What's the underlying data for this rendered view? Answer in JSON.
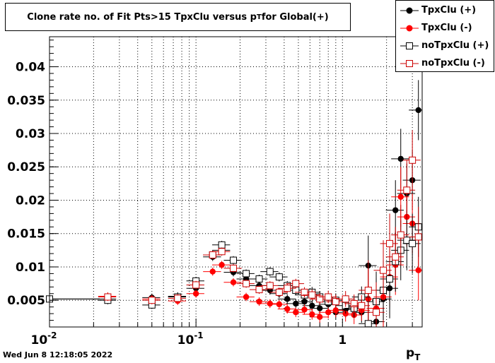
{
  "title": "Clone rate no. of Fit Pts>15 TpxClu versus p",
  "title_sub": "T",
  "title_tail": " for Global(+)",
  "footer": "Wed Jun  8 12:18:05 2022",
  "chart_data": {
    "type": "scatter",
    "xscale": "log",
    "xlim": [
      0.01,
      3.5
    ],
    "ylim": [
      0.001,
      0.0445
    ],
    "xlabel": "p",
    "xlabel_sub": "T",
    "grid": true,
    "legend_position": "top-right",
    "yticks": [
      {
        "v": 0.005,
        "label": "0.005"
      },
      {
        "v": 0.01,
        "label": "0.01"
      },
      {
        "v": 0.015,
        "label": "0.015"
      },
      {
        "v": 0.02,
        "label": "0.02"
      },
      {
        "v": 0.025,
        "label": "0.025"
      },
      {
        "v": 0.03,
        "label": "0.03"
      },
      {
        "v": 0.035,
        "label": "0.035"
      },
      {
        "v": 0.04,
        "label": "0.04"
      }
    ],
    "xticks": [
      {
        "v": 0.01,
        "base": "10",
        "exp": "-2"
      },
      {
        "v": 0.1,
        "base": "10",
        "exp": "-1"
      },
      {
        "v": 1,
        "base": "1",
        "exp": ""
      }
    ],
    "series": [
      {
        "name": "TpxClu (+)",
        "color": "#000000",
        "marker": "filled-circle",
        "x": [
          0.01,
          0.025,
          0.05,
          0.075,
          0.1,
          0.13,
          0.15,
          0.18,
          0.22,
          0.27,
          0.32,
          0.37,
          0.42,
          0.48,
          0.55,
          0.62,
          0.7,
          0.8,
          0.9,
          1.05,
          1.2,
          1.35,
          1.5,
          1.7,
          1.9,
          2.1,
          2.3,
          2.5,
          2.75,
          3.0,
          3.3
        ],
        "y": [
          0.0052,
          0.0052,
          0.0054,
          0.0056,
          0.0068,
          0.0115,
          0.0125,
          0.0092,
          0.0082,
          0.0072,
          0.0065,
          0.006,
          0.0052,
          0.0045,
          0.0048,
          0.0042,
          0.0038,
          0.0044,
          0.0032,
          0.0036,
          0.004,
          0.0032,
          0.0102,
          0.0018,
          0.0052,
          0.0068,
          0.0185,
          0.0262,
          0.021,
          0.023,
          0.0335
        ]
      },
      {
        "name": "TpxClu (-)",
        "color": "#ff0000",
        "marker": "filled-circle",
        "x": [
          0.025,
          0.05,
          0.075,
          0.1,
          0.13,
          0.15,
          0.18,
          0.22,
          0.27,
          0.32,
          0.37,
          0.42,
          0.48,
          0.55,
          0.62,
          0.7,
          0.8,
          0.9,
          1.05,
          1.2,
          1.35,
          1.5,
          1.7,
          1.9,
          2.1,
          2.3,
          2.5,
          2.75,
          3.0,
          3.3
        ],
        "y": [
          0.0056,
          0.0052,
          0.0049,
          0.006,
          0.0093,
          0.0103,
          0.0077,
          0.0055,
          0.0048,
          0.0045,
          0.0044,
          0.0037,
          0.0032,
          0.0036,
          0.0029,
          0.0025,
          0.0032,
          0.0035,
          0.003,
          0.0028,
          0.0035,
          0.0052,
          0.0038,
          0.0055,
          0.0085,
          0.0103,
          0.0205,
          0.0175,
          0.0165,
          0.0095
        ]
      },
      {
        "name": "noTpxClu (+)",
        "color": "#000000",
        "marker": "open-square",
        "x": [
          0.01,
          0.025,
          0.05,
          0.075,
          0.1,
          0.13,
          0.15,
          0.18,
          0.22,
          0.27,
          0.32,
          0.37,
          0.42,
          0.48,
          0.55,
          0.62,
          0.7,
          0.8,
          0.9,
          1.05,
          1.2,
          1.35,
          1.5,
          1.7,
          1.9,
          2.1,
          2.3,
          2.5,
          2.75,
          3.0,
          3.3
        ],
        "y": [
          0.0052,
          0.005,
          0.0043,
          0.0055,
          0.0079,
          0.0118,
          0.0133,
          0.011,
          0.009,
          0.0082,
          0.0093,
          0.0085,
          0.0072,
          0.0065,
          0.0058,
          0.0062,
          0.0055,
          0.0048,
          0.005,
          0.0042,
          0.0038,
          0.0055,
          0.0015,
          0.0048,
          0.0065,
          0.0082,
          0.0108,
          0.0125,
          0.014,
          0.0135,
          0.016
        ]
      },
      {
        "name": "noTpxClu (-)",
        "color": "#cc0000",
        "marker": "open-square",
        "x": [
          0.025,
          0.05,
          0.075,
          0.1,
          0.13,
          0.15,
          0.18,
          0.22,
          0.27,
          0.32,
          0.37,
          0.42,
          0.48,
          0.55,
          0.62,
          0.7,
          0.8,
          0.9,
          1.05,
          1.2,
          1.35,
          1.5,
          1.7,
          1.9,
          2.1,
          2.3,
          2.5,
          2.75,
          3.0,
          3.3
        ],
        "y": [
          0.0055,
          0.005,
          0.0053,
          0.0073,
          0.0118,
          0.0123,
          0.0098,
          0.0075,
          0.0066,
          0.0072,
          0.0062,
          0.0068,
          0.0075,
          0.0062,
          0.0058,
          0.0052,
          0.0055,
          0.0048,
          0.0052,
          0.0045,
          0.0042,
          0.0065,
          0.0032,
          0.0095,
          0.0135,
          0.0115,
          0.0148,
          0.0215,
          0.026,
          0.0145
        ]
      }
    ]
  }
}
